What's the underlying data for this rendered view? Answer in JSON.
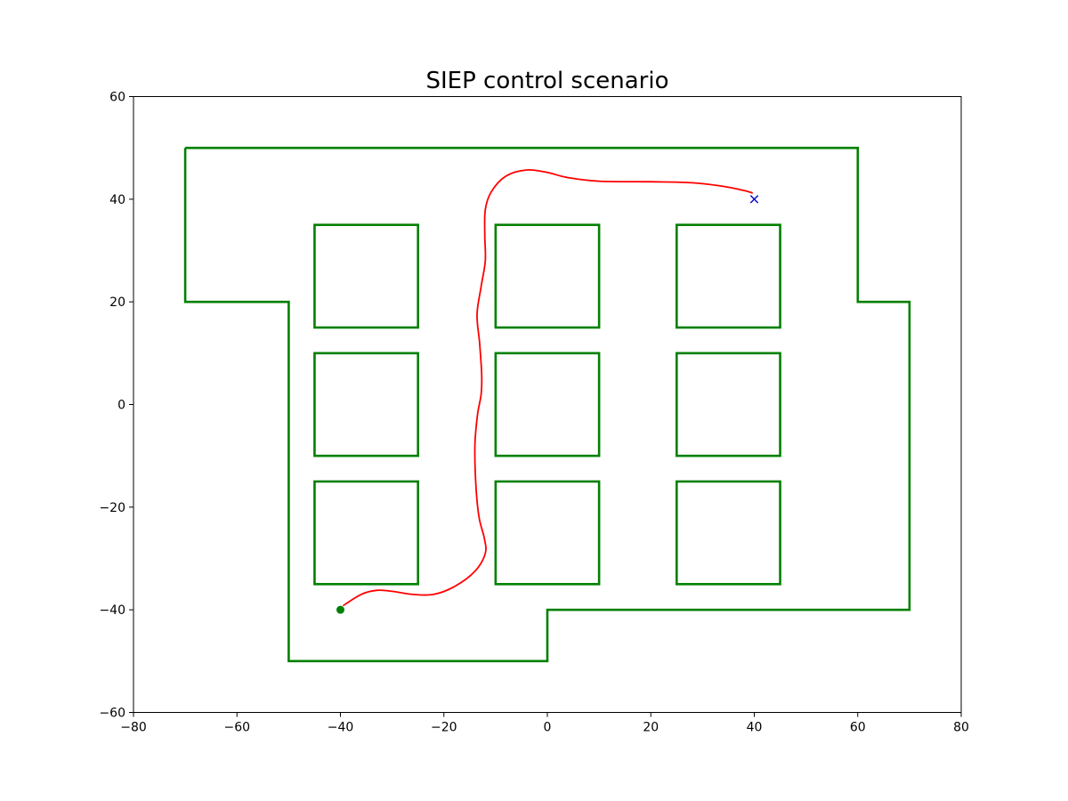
{
  "chart_data": {
    "type": "line",
    "title": "SIEP control scenario",
    "xlabel": "",
    "ylabel": "",
    "xlim": [
      -80,
      80
    ],
    "ylim": [
      -60,
      60
    ],
    "xticks": [
      -80,
      -60,
      -40,
      -20,
      0,
      20,
      40,
      60,
      80
    ],
    "yticks": [
      -60,
      -40,
      -20,
      0,
      20,
      40,
      60
    ],
    "grid": false,
    "legend": "none",
    "colors": {
      "walls": "#008000",
      "trajectory": "#ff0000",
      "start": "#008000",
      "goal": "#0000cc",
      "axes": "#000000"
    },
    "boundary": {
      "points": [
        [
          -70,
          50
        ],
        [
          60,
          50
        ],
        [
          60,
          20
        ],
        [
          70,
          20
        ],
        [
          70,
          -40
        ],
        [
          0,
          -40
        ],
        [
          0,
          -50
        ],
        [
          -50,
          -50
        ],
        [
          -50,
          20
        ],
        [
          -70,
          20
        ],
        [
          -70,
          50
        ]
      ]
    },
    "obstacles": [
      {
        "x": [
          -45,
          -25
        ],
        "y": [
          15,
          35
        ]
      },
      {
        "x": [
          -10,
          10
        ],
        "y": [
          15,
          35
        ]
      },
      {
        "x": [
          25,
          45
        ],
        "y": [
          15,
          35
        ]
      },
      {
        "x": [
          -45,
          -25
        ],
        "y": [
          -10,
          10
        ]
      },
      {
        "x": [
          -10,
          10
        ],
        "y": [
          -10,
          10
        ]
      },
      {
        "x": [
          25,
          45
        ],
        "y": [
          -10,
          10
        ]
      },
      {
        "x": [
          -45,
          -25
        ],
        "y": [
          -35,
          -15
        ]
      },
      {
        "x": [
          -10,
          10
        ],
        "y": [
          -35,
          -15
        ]
      },
      {
        "x": [
          25,
          45
        ],
        "y": [
          -35,
          -15
        ]
      }
    ],
    "trajectory": {
      "points": [
        [
          -39.5,
          -39.2
        ],
        [
          -36,
          -37
        ],
        [
          -33,
          -36.2
        ],
        [
          -30,
          -36.4
        ],
        [
          -26,
          -37
        ],
        [
          -22,
          -37
        ],
        [
          -18,
          -35.5
        ],
        [
          -14,
          -32.5
        ],
        [
          -12,
          -29
        ],
        [
          -12.2,
          -26
        ],
        [
          -13.2,
          -22
        ],
        [
          -13.8,
          -16
        ],
        [
          -14,
          -8
        ],
        [
          -13.5,
          -2
        ],
        [
          -12.8,
          2
        ],
        [
          -12.7,
          6
        ],
        [
          -13.1,
          12
        ],
        [
          -13.6,
          17.5
        ],
        [
          -12.8,
          23
        ],
        [
          -12,
          28
        ],
        [
          -12.1,
          33
        ],
        [
          -12,
          38
        ],
        [
          -10.8,
          41.5
        ],
        [
          -8,
          44.5
        ],
        [
          -4,
          45.7
        ],
        [
          0,
          45.2
        ],
        [
          4,
          44.2
        ],
        [
          10,
          43.5
        ],
        [
          20,
          43.4
        ],
        [
          28,
          43.2
        ],
        [
          34,
          42.5
        ],
        [
          38,
          41.7
        ],
        [
          39.7,
          41.2
        ]
      ]
    },
    "start": {
      "x": -40,
      "y": -40,
      "marker": "circle"
    },
    "goal": {
      "x": 40,
      "y": 40,
      "marker": "x"
    }
  }
}
